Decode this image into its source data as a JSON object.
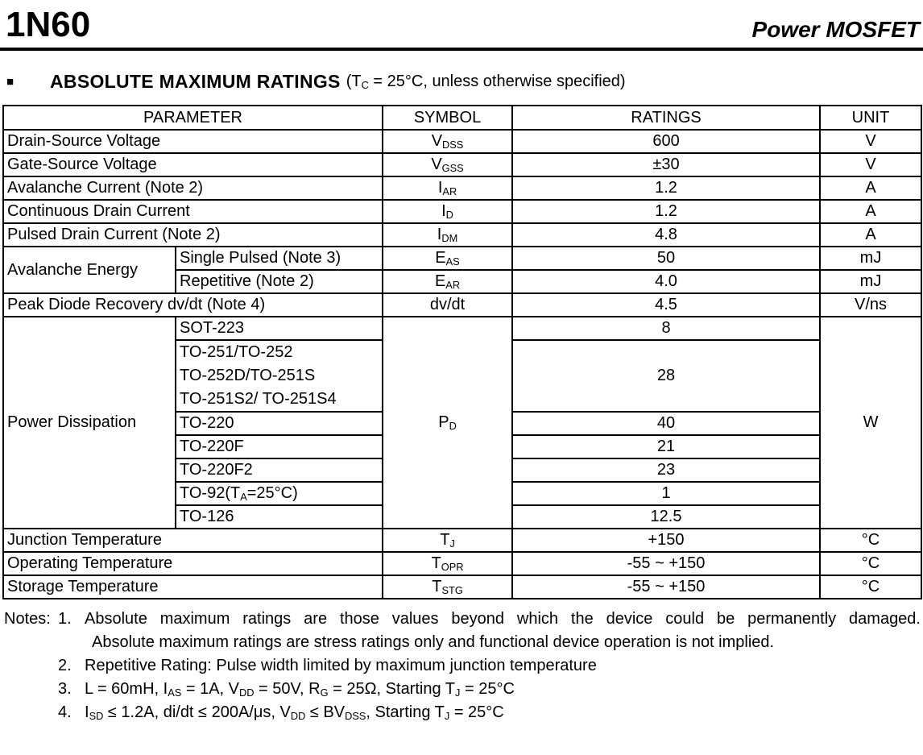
{
  "header": {
    "part_number": "1N60",
    "doc_type": "Power MOSFET"
  },
  "section": {
    "bullet": "■",
    "title": "ABSOLUTE MAXIMUM RATINGS",
    "condition": "(T~C~ = 25°C, unless otherwise specified)"
  },
  "table": {
    "col_parameter": "PARAMETER",
    "col_symbol": "SYMBOL",
    "col_ratings": "RATINGS",
    "col_unit": "UNIT",
    "rows": [
      {
        "parameter": "Drain-Source Voltage",
        "symbol": "V~DSS~",
        "rating": "600",
        "unit": "V"
      },
      {
        "parameter": "Gate-Source Voltage",
        "symbol": "V~GSS~",
        "rating": "±30",
        "unit": "V"
      },
      {
        "parameter": "Avalanche Current (Note 2)",
        "symbol": "I~AR~",
        "rating": "1.2",
        "unit": "A"
      },
      {
        "parameter": "Continuous Drain Current",
        "symbol": "I~D~",
        "rating": "1.2",
        "unit": "A"
      },
      {
        "parameter": "Pulsed Drain Current (Note 2)",
        "symbol": "I~DM~",
        "rating": "4.8",
        "unit": "A"
      },
      {
        "parameter": "Avalanche Energy",
        "sub_parameter": "Single Pulsed (Note 3)",
        "symbol": "E~AS~",
        "rating": "50",
        "unit": "mJ"
      },
      {
        "sub_parameter": "Repetitive (Note 2)",
        "symbol": "E~AR~",
        "rating": "4.0",
        "unit": "mJ"
      },
      {
        "parameter": "Peak Diode Recovery dv/dt (Note 4)",
        "symbol": "dv/dt",
        "rating": "4.5",
        "unit": "V/ns"
      },
      {
        "parameter": "Power Dissipation",
        "sub_parameter": "SOT-223",
        "symbol": "P~D~",
        "rating": "8",
        "unit": "W"
      },
      {
        "sub_parameter": "TO-251/TO-252\nTO-252D/TO-251S\nTO-251S2/ TO-251S4",
        "rating": "28"
      },
      {
        "sub_parameter": "TO-220",
        "rating": "40"
      },
      {
        "sub_parameter": "TO-220F",
        "rating": "21"
      },
      {
        "sub_parameter": "TO-220F2",
        "rating": "23"
      },
      {
        "sub_parameter": "TO-92(T~A~=25°C)",
        "rating": "1"
      },
      {
        "sub_parameter": "TO-126",
        "rating": "12.5"
      },
      {
        "parameter": "Junction Temperature",
        "symbol": "T~J~",
        "rating": "+150",
        "unit": "°C"
      },
      {
        "parameter": "Operating Temperature",
        "symbol": "T~OPR~",
        "rating": "-55 ~ +150",
        "unit": "°C"
      },
      {
        "parameter": "Storage Temperature",
        "symbol": "T~STG~",
        "rating": "-55 ~ +150",
        "unit": "°C"
      }
    ]
  },
  "notes": {
    "label": "Notes:",
    "items": [
      {
        "num": "1.",
        "line1": "Absolute maximum ratings are those values beyond which the device could be permanently damaged.",
        "line2": "Absolute maximum ratings are stress ratings only and functional device operation is not implied."
      },
      {
        "num": "2.",
        "line1": "Repetitive Rating: Pulse width limited by maximum junction temperature"
      },
      {
        "num": "3.",
        "line1": "L = 60mH, I~AS~ = 1A, V~DD~ = 50V, R~G~ = 25Ω, Starting T~J~ = 25°C"
      },
      {
        "num": "4.",
        "line1": "I~SD~ ≤ 1.2A, di/dt ≤ 200A/μs, V~DD~ ≤ BV~DSS~, Starting T~J~ = 25°C"
      }
    ]
  }
}
